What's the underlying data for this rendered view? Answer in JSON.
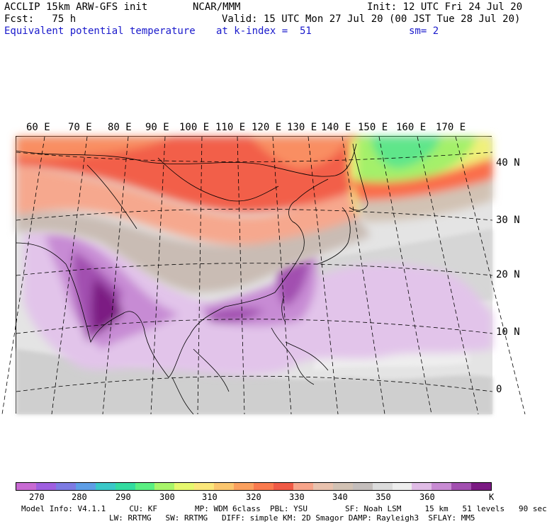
{
  "header": {
    "line1_left": "ACCLIP 15km ARW-GFS init",
    "line1_mid": "NCAR/MMM",
    "line1_right": "Init: 12 UTC Fri 24 Jul 20",
    "line2_left": "Fcst:   75 h",
    "line2_right": "Valid: 15 UTC Mon 27 Jul 20 (00 JST Tue 28 Jul 20)",
    "line3_left": "Equivalent potential temperature",
    "line3_mid": "at k-index =  51",
    "line3_right": "sm= 2"
  },
  "map": {
    "lon_labels": [
      "60 E",
      "70 E",
      "80 E",
      "90 E",
      "100 E",
      "110 E",
      "120 E",
      "130 E",
      "140 E",
      "150 E",
      "160 E",
      "170 E"
    ],
    "lat_labels": [
      "40 N",
      "30 N",
      "20 N",
      "10 N",
      "0"
    ]
  },
  "colorbar": {
    "colors": [
      "#c86ad3",
      "#9f5fe0",
      "#7d7be3",
      "#5e9ee6",
      "#3ac8c8",
      "#33dca0",
      "#5aef82",
      "#a8f56a",
      "#e6f86e",
      "#fbe77a",
      "#fbc66e",
      "#fba05e",
      "#fa7a4e",
      "#f05a46",
      "#f7a48a",
      "#e9c2ae",
      "#d2c2b4",
      "#c4bebc",
      "#dcdcdc",
      "#eeeeee",
      "#e0bce6",
      "#c88bd3",
      "#a24fb0",
      "#7b1a83"
    ],
    "labels": [
      "270",
      "280",
      "290",
      "300",
      "310",
      "320",
      "330",
      "340",
      "350",
      "360"
    ],
    "unit": "K"
  },
  "footer": {
    "line1": "Model Info: V4.1.1     CU: KF        MP: WDM 6class  PBL: YSU        SF: Noah LSM     15 km   51 levels   90 sec",
    "line2": "LW: RRTMG   SW: RRTMG   DIFF: simple KM: 2D Smagor DAMP: Rayleigh3  SFLAY: MM5"
  }
}
